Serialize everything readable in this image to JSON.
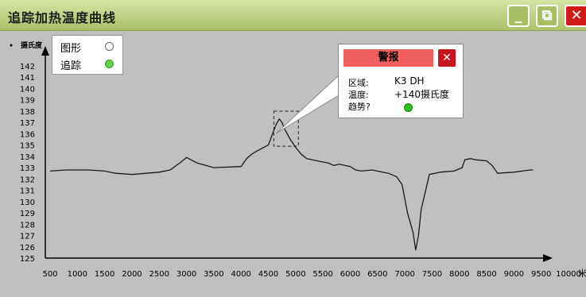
{
  "window": {
    "title": "追踪加热温度曲线",
    "min_label": "_",
    "restore_label": "⧉",
    "close_label": "✕"
  },
  "legend": {
    "items": [
      {
        "label": "图形",
        "marker": "hollow-circle",
        "color": "#ffffff"
      },
      {
        "label": "追踪",
        "marker": "filled-circle",
        "color": "#5fd24a"
      }
    ]
  },
  "alarm_popup": {
    "title": "警报",
    "close_label": "✕",
    "rows": [
      {
        "label": "区域:",
        "value": "K3 DH"
      },
      {
        "label": "温度:",
        "value": "+140摄氏度"
      },
      {
        "label": "趋势?",
        "value": ""
      }
    ],
    "trend_color": "#2fc21e"
  },
  "chart_data": {
    "type": "line",
    "ylabel": "摄氏度",
    "xlabel": "米",
    "ylim": [
      125,
      142
    ],
    "xlim": [
      500,
      10000
    ],
    "y_ticks": [
      142,
      141,
      140,
      139,
      138,
      137,
      136,
      135,
      134,
      133,
      132,
      131,
      130,
      129,
      128,
      127,
      126,
      125
    ],
    "x_ticks": [
      500,
      1000,
      1500,
      2000,
      2500,
      3000,
      3500,
      4000,
      4500,
      5000,
      5500,
      6000,
      6500,
      7000,
      7500,
      8000,
      8500,
      9000,
      9500,
      10000
    ],
    "grid": false,
    "legend_position": "top-left",
    "series": [
      {
        "name": "追踪",
        "x": [
          500,
          800,
          1200,
          1500,
          1700,
          2000,
          2500,
          2700,
          2900,
          3000,
          3200,
          3500,
          4000,
          4100,
          4200,
          4300,
          4500,
          4600,
          4650,
          4700,
          4750,
          4800,
          4900,
          5000,
          5100,
          5200,
          5400,
          5600,
          5700,
          5800,
          6000,
          6100,
          6200,
          6400,
          6700,
          6850,
          6950,
          7050,
          7150,
          7200,
          7250,
          7300,
          7450,
          7650,
          7900,
          8050,
          8100,
          8200,
          8300,
          8500,
          8600,
          8700,
          9000,
          9300,
          9350
        ],
        "y": [
          132.7,
          132.8,
          132.8,
          132.7,
          132.5,
          132.4,
          132.6,
          132.8,
          133.5,
          133.9,
          133.4,
          133.0,
          133.1,
          133.8,
          134.2,
          134.5,
          135.0,
          136.3,
          136.9,
          137.3,
          137.0,
          136.4,
          135.5,
          134.8,
          134.2,
          133.8,
          133.6,
          133.4,
          133.2,
          133.3,
          133.1,
          132.8,
          132.7,
          132.8,
          132.5,
          132.2,
          131.5,
          129.0,
          127.3,
          125.7,
          127.0,
          129.3,
          132.4,
          132.6,
          132.7,
          133.0,
          133.7,
          133.8,
          133.7,
          133.6,
          133.2,
          132.5,
          132.6,
          132.8,
          132.8
        ]
      }
    ],
    "annotation": {
      "label": "K3 DH",
      "x_range": [
        4600,
        5050
      ],
      "y_range": [
        134.9,
        138.0
      ]
    }
  }
}
